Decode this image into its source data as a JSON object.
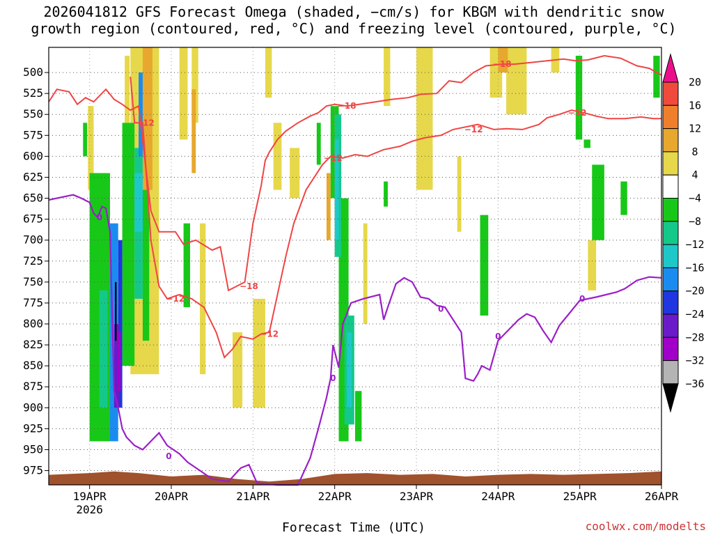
{
  "chart_data": {
    "type": "contour-time-height",
    "title_lines": [
      "2026041812 GFS Forecast Omega (shaded, −cm/s) for KBGM with dendritic snow",
      "growth region (contoured, red, °C) and freezing level (contoured, purple, °C)"
    ],
    "xlabel": "Forecast Time (UTC)",
    "credit": "coolwx.com/modelts",
    "x_ticks": [
      {
        "label": "19APR",
        "sub": "2026",
        "day": 19
      },
      {
        "label": "20APR",
        "day": 20
      },
      {
        "label": "21APR",
        "day": 21
      },
      {
        "label": "22APR",
        "day": 22
      },
      {
        "label": "23APR",
        "day": 23
      },
      {
        "label": "24APR",
        "day": 24
      },
      {
        "label": "25APR",
        "day": 25
      },
      {
        "label": "26APR",
        "day": 26
      }
    ],
    "xlim": [
      18.5,
      26.0
    ],
    "ylim": [
      470,
      992
    ],
    "y_ticks": [
      500,
      525,
      550,
      575,
      600,
      625,
      650,
      675,
      700,
      725,
      750,
      775,
      800,
      825,
      850,
      875,
      900,
      925,
      950,
      975
    ],
    "colorbar": {
      "levels": [
        "20",
        "16",
        "12",
        "8",
        "4",
        "−4",
        "−8",
        "−12",
        "−16",
        "−20",
        "−24",
        "−28",
        "−32",
        "−36"
      ],
      "colors": [
        "#ec0f8c",
        "#f04a3c",
        "#f07f2c",
        "#e8a82e",
        "#e6d84a",
        "#ffffff",
        "#18c818",
        "#14c88a",
        "#1fc8c8",
        "#1a8cf0",
        "#1f36e0",
        "#6a1ac8",
        "#a000c8",
        "#b4b4b4",
        "#000000"
      ]
    },
    "contours": {
      "freezing_level_purple": {
        "label": "0",
        "color": "#9b1fc8",
        "points": [
          [
            18.5,
            652
          ],
          [
            18.7,
            648
          ],
          [
            18.8,
            646
          ],
          [
            18.9,
            650
          ],
          [
            19.0,
            655
          ],
          [
            19.05,
            668
          ],
          [
            19.1,
            673
          ],
          [
            19.15,
            660
          ],
          [
            19.2,
            662
          ],
          [
            19.25,
            690
          ],
          [
            19.3,
            880
          ],
          [
            19.35,
            900
          ],
          [
            19.4,
            925
          ],
          [
            19.45,
            935
          ],
          [
            19.55,
            945
          ],
          [
            19.65,
            950
          ],
          [
            19.75,
            940
          ],
          [
            19.85,
            930
          ],
          [
            19.95,
            945
          ],
          [
            20.1,
            955
          ],
          [
            20.2,
            965
          ],
          [
            20.35,
            975
          ],
          [
            20.5,
            985
          ],
          [
            20.7,
            988
          ],
          [
            20.85,
            972
          ],
          [
            20.95,
            968
          ],
          [
            21.05,
            990
          ],
          [
            21.3,
            992
          ],
          [
            21.55,
            992
          ],
          [
            21.7,
            960
          ],
          [
            21.8,
            925
          ],
          [
            21.9,
            888
          ],
          [
            21.95,
            865
          ],
          [
            21.98,
            825
          ],
          [
            22.05,
            852
          ],
          [
            22.1,
            800
          ],
          [
            22.2,
            775
          ],
          [
            22.35,
            770
          ],
          [
            22.55,
            765
          ],
          [
            22.6,
            795
          ],
          [
            22.65,
            780
          ],
          [
            22.75,
            752
          ],
          [
            22.85,
            745
          ],
          [
            22.95,
            750
          ],
          [
            23.05,
            768
          ],
          [
            23.15,
            770
          ],
          [
            23.25,
            778
          ],
          [
            23.35,
            780
          ],
          [
            23.45,
            795
          ],
          [
            23.55,
            810
          ],
          [
            23.6,
            865
          ],
          [
            23.7,
            868
          ],
          [
            23.75,
            860
          ],
          [
            23.8,
            850
          ],
          [
            23.9,
            855
          ],
          [
            24.0,
            820
          ],
          [
            24.15,
            805
          ],
          [
            24.25,
            795
          ],
          [
            24.35,
            788
          ],
          [
            24.45,
            792
          ],
          [
            24.55,
            808
          ],
          [
            24.65,
            822
          ],
          [
            24.75,
            802
          ],
          [
            24.85,
            790
          ],
          [
            25.0,
            772
          ],
          [
            25.2,
            768
          ],
          [
            25.45,
            762
          ],
          [
            25.55,
            758
          ],
          [
            25.7,
            748
          ],
          [
            25.85,
            744
          ],
          [
            26.0,
            745
          ]
        ]
      },
      "dgz_upper_red": {
        "label": "−18",
        "color": "#f04444",
        "points": [
          [
            18.5,
            535
          ],
          [
            18.6,
            520
          ],
          [
            18.75,
            523
          ],
          [
            18.85,
            538
          ],
          [
            18.95,
            530
          ],
          [
            19.05,
            535
          ],
          [
            19.2,
            520
          ],
          [
            19.3,
            532
          ],
          [
            19.4,
            538
          ],
          [
            19.5,
            545
          ],
          [
            19.6,
            540
          ],
          [
            19.75,
            665
          ],
          [
            19.85,
            690
          ],
          [
            19.95,
            690
          ],
          [
            20.05,
            690
          ],
          [
            20.15,
            705
          ],
          [
            20.3,
            700
          ],
          [
            20.5,
            712
          ],
          [
            20.6,
            708
          ],
          [
            20.7,
            760
          ],
          [
            20.8,
            755
          ],
          [
            20.9,
            750
          ],
          [
            21.0,
            680
          ],
          [
            21.1,
            635
          ],
          [
            21.15,
            605
          ],
          [
            21.2,
            595
          ],
          [
            21.3,
            580
          ],
          [
            21.4,
            570
          ],
          [
            21.55,
            560
          ],
          [
            21.7,
            552
          ],
          [
            21.8,
            548
          ],
          [
            21.9,
            540
          ],
          [
            22.0,
            538
          ],
          [
            22.15,
            540
          ],
          [
            22.3,
            538
          ],
          [
            22.5,
            535
          ],
          [
            22.7,
            532
          ],
          [
            22.9,
            530
          ],
          [
            23.05,
            526
          ],
          [
            23.25,
            525
          ],
          [
            23.4,
            510
          ],
          [
            23.55,
            512
          ],
          [
            23.7,
            500
          ],
          [
            23.85,
            492
          ],
          [
            24.05,
            490
          ],
          [
            24.2,
            490
          ],
          [
            24.4,
            488
          ],
          [
            24.6,
            486
          ],
          [
            24.8,
            484
          ],
          [
            24.95,
            486
          ],
          [
            25.1,
            485
          ],
          [
            25.3,
            480
          ],
          [
            25.5,
            483
          ],
          [
            25.7,
            492
          ],
          [
            25.85,
            495
          ],
          [
            26.0,
            503
          ]
        ]
      },
      "dgz_lower_red": {
        "label": "−12",
        "color": "#f04444",
        "points": [
          [
            19.5,
            505
          ],
          [
            19.55,
            560
          ],
          [
            19.65,
            560
          ],
          [
            19.75,
            700
          ],
          [
            19.85,
            755
          ],
          [
            19.95,
            770
          ],
          [
            20.1,
            765
          ],
          [
            20.25,
            770
          ],
          [
            20.4,
            780
          ],
          [
            20.55,
            810
          ],
          [
            20.65,
            840
          ],
          [
            20.75,
            830
          ],
          [
            20.85,
            815
          ],
          [
            21.0,
            818
          ],
          [
            21.1,
            812
          ],
          [
            21.2,
            810
          ],
          [
            21.3,
            765
          ],
          [
            21.4,
            720
          ],
          [
            21.5,
            680
          ],
          [
            21.65,
            640
          ],
          [
            21.85,
            610
          ],
          [
            21.95,
            600
          ],
          [
            22.1,
            602
          ],
          [
            22.25,
            598
          ],
          [
            22.4,
            600
          ],
          [
            22.6,
            592
          ],
          [
            22.8,
            588
          ],
          [
            22.95,
            582
          ],
          [
            23.1,
            578
          ],
          [
            23.3,
            575
          ],
          [
            23.45,
            568
          ],
          [
            23.6,
            565
          ],
          [
            23.75,
            562
          ],
          [
            23.95,
            568
          ],
          [
            24.1,
            567
          ],
          [
            24.3,
            568
          ],
          [
            24.5,
            562
          ],
          [
            24.6,
            554
          ],
          [
            24.75,
            550
          ],
          [
            24.9,
            545
          ],
          [
            25.05,
            548
          ],
          [
            25.2,
            552
          ],
          [
            25.35,
            555
          ],
          [
            25.55,
            555
          ],
          [
            25.75,
            553
          ],
          [
            25.9,
            555
          ],
          [
            26.0,
            555
          ]
        ]
      }
    },
    "shaded_omega": [
      {
        "band": "4",
        "t": 18.98,
        "dt": 0.07,
        "p0": 540,
        "p1": 640
      },
      {
        "band": "4",
        "t": 19.43,
        "dt": 0.06,
        "p0": 480,
        "p1": 560
      },
      {
        "band": "4",
        "t": 19.5,
        "dt": 0.35,
        "p0": 470,
        "p1": 860
      },
      {
        "band": "4",
        "t": 20.1,
        "dt": 0.1,
        "p0": 470,
        "p1": 580
      },
      {
        "band": "4",
        "t": 20.25,
        "dt": 0.08,
        "p0": 470,
        "p1": 560
      },
      {
        "band": "4",
        "t": 20.35,
        "dt": 0.07,
        "p0": 680,
        "p1": 860
      },
      {
        "band": "4",
        "t": 20.75,
        "dt": 0.12,
        "p0": 810,
        "p1": 900
      },
      {
        "band": "4",
        "t": 21.0,
        "dt": 0.15,
        "p0": 770,
        "p1": 900
      },
      {
        "band": "4",
        "t": 21.15,
        "dt": 0.08,
        "p0": 470,
        "p1": 530
      },
      {
        "band": "4",
        "t": 21.25,
        "dt": 0.1,
        "p0": 560,
        "p1": 640
      },
      {
        "band": "4",
        "t": 21.45,
        "dt": 0.12,
        "p0": 590,
        "p1": 650
      },
      {
        "band": "4",
        "t": 22.35,
        "dt": 0.05,
        "p0": 680,
        "p1": 800
      },
      {
        "band": "4",
        "t": 22.6,
        "dt": 0.08,
        "p0": 470,
        "p1": 540
      },
      {
        "band": "4",
        "t": 23.0,
        "dt": 0.2,
        "p0": 470,
        "p1": 640
      },
      {
        "band": "4",
        "t": 23.5,
        "dt": 0.05,
        "p0": 600,
        "p1": 690
      },
      {
        "band": "4",
        "t": 23.9,
        "dt": 0.15,
        "p0": 470,
        "p1": 530
      },
      {
        "band": "4",
        "t": 24.1,
        "dt": 0.25,
        "p0": 470,
        "p1": 550
      },
      {
        "band": "4",
        "t": 24.65,
        "dt": 0.1,
        "p0": 470,
        "p1": 500
      },
      {
        "band": "4",
        "t": 25.1,
        "dt": 0.1,
        "p0": 700,
        "p1": 760
      },
      {
        "band": "8",
        "t": 19.65,
        "dt": 0.12,
        "p0": 470,
        "p1": 640
      },
      {
        "band": "8",
        "t": 20.25,
        "dt": 0.05,
        "p0": 520,
        "p1": 620
      },
      {
        "band": "8",
        "t": 21.9,
        "dt": 0.05,
        "p0": 620,
        "p1": 700
      },
      {
        "band": "8",
        "t": 24.0,
        "dt": 0.12,
        "p0": 470,
        "p1": 500
      },
      {
        "band": "-4",
        "t": 18.92,
        "dt": 0.05,
        "p0": 560,
        "p1": 600
      },
      {
        "band": "-4",
        "t": 19.0,
        "dt": 0.25,
        "p0": 620,
        "p1": 940
      },
      {
        "band": "-4",
        "t": 19.4,
        "dt": 0.15,
        "p0": 560,
        "p1": 850
      },
      {
        "band": "-4",
        "t": 19.65,
        "dt": 0.08,
        "p0": 640,
        "p1": 820
      },
      {
        "band": "-4",
        "t": 20.15,
        "dt": 0.08,
        "p0": 680,
        "p1": 780
      },
      {
        "band": "-4",
        "t": 21.78,
        "dt": 0.05,
        "p0": 560,
        "p1": 610
      },
      {
        "band": "-4",
        "t": 21.95,
        "dt": 0.1,
        "p0": 540,
        "p1": 650
      },
      {
        "band": "-4",
        "t": 22.05,
        "dt": 0.12,
        "p0": 650,
        "p1": 940
      },
      {
        "band": "-4",
        "t": 22.25,
        "dt": 0.08,
        "p0": 880,
        "p1": 940
      },
      {
        "band": "-4",
        "t": 22.6,
        "dt": 0.05,
        "p0": 630,
        "p1": 660
      },
      {
        "band": "-4",
        "t": 23.78,
        "dt": 0.1,
        "p0": 670,
        "p1": 790
      },
      {
        "band": "-4",
        "t": 24.95,
        "dt": 0.08,
        "p0": 480,
        "p1": 580
      },
      {
        "band": "-4",
        "t": 25.05,
        "dt": 0.08,
        "p0": 580,
        "p1": 590
      },
      {
        "band": "-4",
        "t": 25.15,
        "dt": 0.15,
        "p0": 610,
        "p1": 700
      },
      {
        "band": "-4",
        "t": 25.5,
        "dt": 0.08,
        "p0": 630,
        "p1": 670
      },
      {
        "band": "-4",
        "t": 25.9,
        "dt": 0.08,
        "p0": 480,
        "p1": 530
      },
      {
        "band": "-8",
        "t": 19.12,
        "dt": 0.1,
        "p0": 760,
        "p1": 900
      },
      {
        "band": "-8",
        "t": 19.55,
        "dt": 0.1,
        "p0": 590,
        "p1": 770
      },
      {
        "band": "-8",
        "t": 22.0,
        "dt": 0.08,
        "p0": 550,
        "p1": 720
      },
      {
        "band": "-8",
        "t": 22.12,
        "dt": 0.12,
        "p0": 790,
        "p1": 920
      },
      {
        "band": "-12",
        "t": 19.55,
        "dt": 0.1,
        "p0": 620,
        "p1": 690
      },
      {
        "band": "-12",
        "t": 22.0,
        "dt": 0.05,
        "p0": 580,
        "p1": 700
      },
      {
        "band": "-12",
        "t": 22.15,
        "dt": 0.06,
        "p0": 810,
        "p1": 900
      },
      {
        "band": "-16",
        "t": 19.25,
        "dt": 0.1,
        "p0": 680,
        "p1": 940
      },
      {
        "band": "-16",
        "t": 19.6,
        "dt": 0.05,
        "p0": 500,
        "p1": 600
      },
      {
        "band": "-20",
        "t": 19.35,
        "dt": 0.05,
        "p0": 700,
        "p1": 900
      },
      {
        "band": "-24",
        "t": 19.3,
        "dt": 0.06,
        "p0": 800,
        "p1": 900
      },
      {
        "band": "-28",
        "t": 19.34,
        "dt": 0.04,
        "p0": 810,
        "p1": 880
      },
      {
        "band": "-36",
        "t": 19.31,
        "dt": 0.02,
        "p0": 750,
        "p1": 820
      }
    ],
    "terrain_color": "#a0522d"
  }
}
